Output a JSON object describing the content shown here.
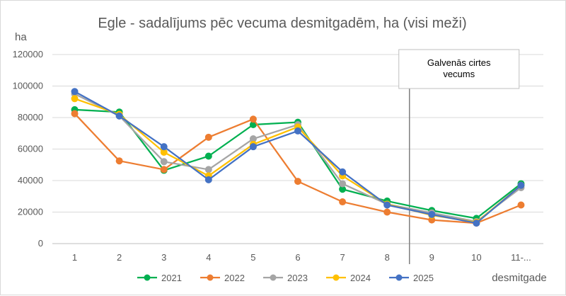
{
  "chart_data": {
    "type": "line",
    "title": "Egle - sadalījums pēc vecuma desmitgadēm, ha (visi meži)",
    "ylabel": "ha",
    "xlabel": "desmitgade",
    "categories": [
      "1",
      "2",
      "3",
      "4",
      "5",
      "6",
      "7",
      "8",
      "9",
      "10",
      "11-..."
    ],
    "ylim": [
      0,
      120000
    ],
    "yticks": [
      0,
      20000,
      40000,
      60000,
      80000,
      100000,
      120000
    ],
    "grid": true,
    "legend_position": "bottom",
    "series": [
      {
        "name": "2021",
        "color": "#00b050",
        "values": [
          85000,
          83500,
          46500,
          55500,
          75500,
          77000,
          34500,
          27000,
          21000,
          16000,
          38000
        ]
      },
      {
        "name": "2022",
        "color": "#ed7d31",
        "values": [
          82500,
          52500,
          47000,
          67500,
          79000,
          39500,
          26500,
          20000,
          15000,
          13000,
          24500
        ]
      },
      {
        "name": "2023",
        "color": "#a5a5a5",
        "values": [
          95000,
          81000,
          52000,
          47000,
          66500,
          75500,
          38000,
          25000,
          19500,
          14000,
          35500
        ]
      },
      {
        "name": "2024",
        "color": "#ffc000",
        "values": [
          92000,
          82000,
          58000,
          43000,
          63000,
          74000,
          43000,
          25000,
          18000,
          13500,
          37000
        ]
      },
      {
        "name": "2025",
        "color": "#4472c4",
        "values": [
          96500,
          81000,
          61500,
          40500,
          61500,
          71500,
          45500,
          24500,
          18500,
          13000,
          37000
        ]
      }
    ],
    "annotation": {
      "label": "Galvenās cirtes vecums",
      "after_category": "8"
    }
  }
}
